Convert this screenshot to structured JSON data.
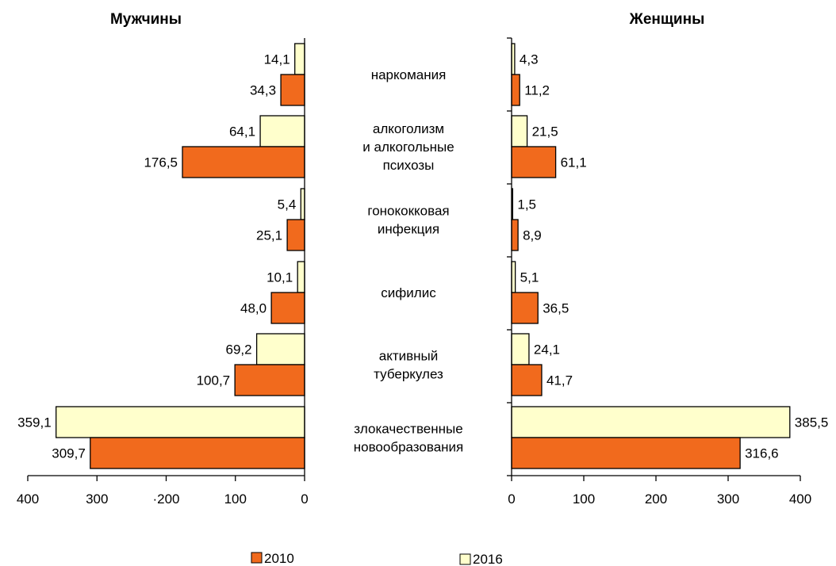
{
  "chart_data": [
    {
      "type": "bar",
      "orientation": "horizontal",
      "title": "Мужчины",
      "x_direction": "reversed",
      "xlim": [
        0,
        400
      ],
      "tick_labels": [
        "400",
        "300",
        "·200",
        "100",
        "0"
      ],
      "categories": [
        "наркомания",
        "алкоголизм и алкогольные психозы",
        "гонококковая инфекция",
        "сифилис",
        "активный туберкулез",
        "злокачественные новообразования"
      ],
      "series": [
        {
          "name": "2016",
          "values": [
            14.1,
            64.1,
            5.4,
            10.1,
            69.2,
            359.1
          ],
          "labels": [
            "14,1",
            "64,1",
            "5,4",
            "10,1",
            "69,2",
            "359,1"
          ]
        },
        {
          "name": "2010",
          "values": [
            34.3,
            176.5,
            25.1,
            48.0,
            100.7,
            309.7
          ],
          "labels": [
            "34,3",
            "176,5",
            "25,1",
            "48,0",
            "100,7",
            "309,7"
          ]
        }
      ]
    },
    {
      "type": "bar",
      "orientation": "horizontal",
      "title": "Женщины",
      "xlim": [
        0,
        400
      ],
      "tick_labels": [
        "0",
        "100",
        "200",
        "300",
        "400"
      ],
      "categories": [
        "наркомания",
        "алкоголизм и алкогольные психозы",
        "гонококковая инфекция",
        "сифилис",
        "активный туберкулез",
        "злокачественные новообразования"
      ],
      "series": [
        {
          "name": "2016",
          "values": [
            4.3,
            21.5,
            1.5,
            5.1,
            24.1,
            385.5
          ],
          "labels": [
            "4,3",
            "21,5",
            "1,5",
            "5,1",
            "24,1",
            "385,5"
          ]
        },
        {
          "name": "2010",
          "values": [
            11.2,
            61.1,
            8.9,
            36.5,
            41.7,
            316.6
          ],
          "labels": [
            "11,2",
            "61,1",
            "8,9",
            "36,5",
            "41,7",
            "316,6"
          ]
        }
      ]
    }
  ],
  "category_lines": [
    [
      "наркомания"
    ],
    [
      "алкоголизм",
      "и алкогольные",
      "психозы"
    ],
    [
      "гонококковая",
      "инфекция"
    ],
    [
      "сифилис"
    ],
    [
      "активный",
      "туберкулез"
    ],
    [
      "злокачественные",
      "новообразования"
    ]
  ],
  "legend": [
    {
      "label": "2010",
      "color": "#f16a1d"
    },
    {
      "label": "2016",
      "color": "#ffffcc"
    }
  ],
  "colors": {
    "2010": "#f16a1d",
    "2016": "#ffffcc",
    "stroke": "#000000"
  }
}
